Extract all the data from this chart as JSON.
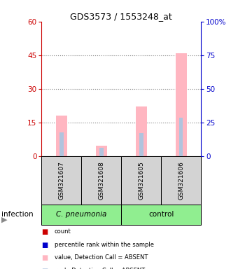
{
  "title": "GDS3573 / 1553248_at",
  "samples": [
    "GSM321607",
    "GSM321608",
    "GSM321605",
    "GSM321606"
  ],
  "pink_values": [
    18.0,
    4.5,
    22.0,
    46.0
  ],
  "blue_rank_values": [
    17.5,
    6.0,
    17.0,
    28.5
  ],
  "left_ylim": [
    0,
    60
  ],
  "right_ylim": [
    0,
    100
  ],
  "left_yticks": [
    0,
    15,
    30,
    45,
    60
  ],
  "right_yticks": [
    0,
    25,
    50,
    75,
    100
  ],
  "right_yticklabels": [
    "0",
    "25",
    "50",
    "75",
    "100%"
  ],
  "left_color": "#cc0000",
  "right_color": "#0000cc",
  "pink_bar_color": "#FFB6C1",
  "light_blue_bar_color": "#B0C4DE",
  "grid_color": "#000000",
  "grid_linestyle": ":",
  "grid_linewidth": 0.8,
  "grid_alpha": 0.5,
  "sample_box_color": "#d3d3d3",
  "cpneumonia_color": "#90EE90",
  "control_color": "#90EE90",
  "infection_label": "infection",
  "legend_items": [
    {
      "color": "#cc0000",
      "label": "count"
    },
    {
      "color": "#0000cc",
      "label": "percentile rank within the sample"
    },
    {
      "color": "#FFB6C1",
      "label": "value, Detection Call = ABSENT"
    },
    {
      "color": "#B0C4DE",
      "label": "rank, Detection Call = ABSENT"
    }
  ]
}
